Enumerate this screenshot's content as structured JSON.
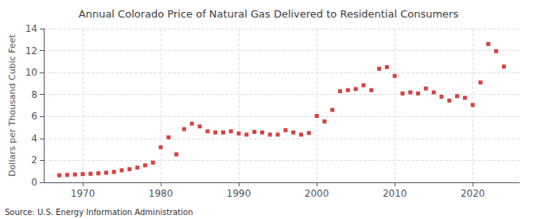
{
  "chart_data": {
    "type": "scatter",
    "title": "Annual Colorado Price of Natural Gas Delivered to Residential Consumers",
    "ylabel": "Dollars per Thousand Cubic Feet",
    "annotations": [
      "Source: U.S. Energy Information Administration"
    ],
    "x": [
      1967,
      1968,
      1969,
      1970,
      1971,
      1972,
      1973,
      1974,
      1975,
      1976,
      1977,
      1978,
      1979,
      1980,
      1981,
      1982,
      1983,
      1984,
      1985,
      1986,
      1987,
      1988,
      1989,
      1990,
      1991,
      1992,
      1993,
      1994,
      1995,
      1996,
      1997,
      1998,
      1999,
      2000,
      2001,
      2002,
      2003,
      2004,
      2005,
      2006,
      2007,
      2008,
      2009,
      2010,
      2011,
      2012,
      2013,
      2014,
      2015,
      2016,
      2017,
      2018,
      2019,
      2020,
      2021,
      2022,
      2023,
      2024
    ],
    "values": [
      0.65,
      0.68,
      0.72,
      0.75,
      0.78,
      0.82,
      0.88,
      0.95,
      1.1,
      1.2,
      1.35,
      1.55,
      1.8,
      3.2,
      4.1,
      2.55,
      4.85,
      5.35,
      5.1,
      4.65,
      4.55,
      4.55,
      4.65,
      4.45,
      4.35,
      4.6,
      4.55,
      4.35,
      4.35,
      4.75,
      4.55,
      4.35,
      4.5,
      6.05,
      5.55,
      6.6,
      8.3,
      8.4,
      8.5,
      8.85,
      8.4,
      10.35,
      10.5,
      9.7,
      8.1,
      8.2,
      8.1,
      8.55,
      8.2,
      7.8,
      7.45,
      7.85,
      7.7,
      7.05,
      9.1,
      12.6,
      11.95,
      10.55
    ],
    "color": "#cc1111",
    "marker": "square",
    "grid": true,
    "xlim": [
      1965,
      2026
    ],
    "xticks": [
      1970,
      1980,
      1990,
      2000,
      2010,
      2020
    ],
    "ylim": [
      0,
      14
    ],
    "yticks": [
      0,
      2,
      4,
      6,
      8,
      10,
      12,
      14
    ]
  }
}
